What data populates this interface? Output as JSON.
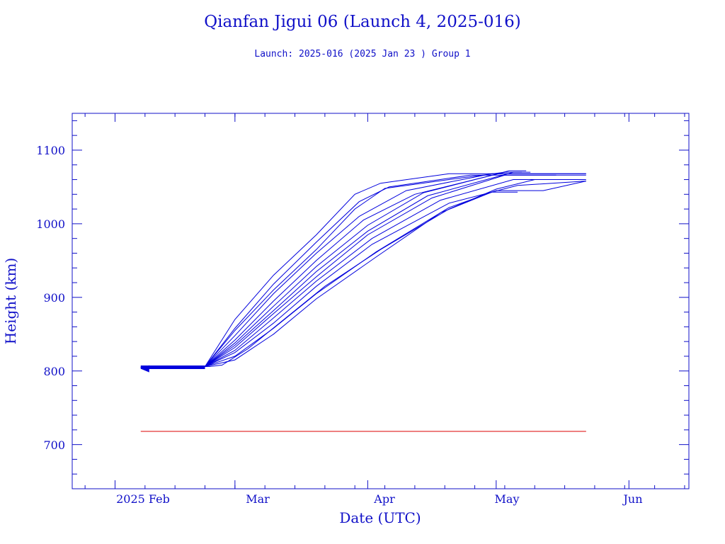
{
  "chart_data": {
    "type": "line",
    "title": "Qianfan Jigui 06 (Launch 4, 2025-016)",
    "subtitle": "Launch: 2025-016  (2025 Jan 23 )  Group 1",
    "xlabel": "Date (UTC)",
    "ylabel": "Height (km)",
    "x_tick_labels": [
      "2025 Feb",
      "Mar",
      "Apr",
      "May",
      "Jun"
    ],
    "x_ticks": [
      "2025-02-01",
      "2025-03-01",
      "2025-04-01",
      "2025-05-01",
      "2025-06-01"
    ],
    "y_ticks": [
      700,
      800,
      900,
      1000,
      1100
    ],
    "xlim": [
      "2025-01-22",
      "2025-06-15"
    ],
    "ylim": [
      640,
      1150
    ],
    "grid": false,
    "colors": {
      "series": "#0000dd",
      "reference": "#dd0000",
      "axes": "#1010c8"
    },
    "reference_line": {
      "y": 718,
      "x_start": "2025-02-07",
      "x_end": "2025-05-22"
    },
    "start_marker": {
      "x": "2025-02-07",
      "y": 803
    },
    "series": [
      {
        "values": [
          [
            "2025-02-07",
            805
          ],
          [
            "2025-02-22",
            806
          ],
          [
            "2025-03-01",
            870
          ],
          [
            "2025-03-10",
            930
          ],
          [
            "2025-03-20",
            985
          ],
          [
            "2025-03-29",
            1040
          ],
          [
            "2025-04-04",
            1055
          ],
          [
            "2025-04-20",
            1068
          ],
          [
            "2025-05-22",
            1068
          ]
        ]
      },
      {
        "values": [
          [
            "2025-02-07",
            805
          ],
          [
            "2025-02-22",
            806
          ],
          [
            "2025-03-01",
            858
          ],
          [
            "2025-03-10",
            918
          ],
          [
            "2025-03-20",
            975
          ],
          [
            "2025-03-30",
            1030
          ],
          [
            "2025-04-06",
            1050
          ],
          [
            "2025-04-25",
            1066
          ],
          [
            "2025-05-22",
            1066
          ]
        ]
      },
      {
        "values": [
          [
            "2025-02-07",
            805
          ],
          [
            "2025-02-22",
            806
          ],
          [
            "2025-03-01",
            848
          ],
          [
            "2025-03-10",
            905
          ],
          [
            "2025-03-20",
            960
          ],
          [
            "2025-03-30",
            1010
          ],
          [
            "2025-04-10",
            1045
          ],
          [
            "2025-04-30",
            1068
          ],
          [
            "2025-05-22",
            1068
          ]
        ]
      },
      {
        "values": [
          [
            "2025-02-07",
            805
          ],
          [
            "2025-02-22",
            806
          ],
          [
            "2025-03-01",
            842
          ],
          [
            "2025-03-10",
            895
          ],
          [
            "2025-03-20",
            950
          ],
          [
            "2025-03-31",
            1005
          ],
          [
            "2025-04-12",
            1040
          ],
          [
            "2025-05-03",
            1070
          ],
          [
            "2025-05-07",
            1070
          ]
        ]
      },
      {
        "values": [
          [
            "2025-02-07",
            805
          ],
          [
            "2025-02-22",
            806
          ],
          [
            "2025-03-01",
            838
          ],
          [
            "2025-03-10",
            888
          ],
          [
            "2025-03-20",
            942
          ],
          [
            "2025-04-01",
            998
          ],
          [
            "2025-04-14",
            1042
          ],
          [
            "2025-05-04",
            1072
          ],
          [
            "2025-05-08",
            1072
          ]
        ]
      },
      {
        "values": [
          [
            "2025-02-07",
            805
          ],
          [
            "2025-02-22",
            806
          ],
          [
            "2025-03-01",
            835
          ],
          [
            "2025-03-10",
            882
          ],
          [
            "2025-03-20",
            935
          ],
          [
            "2025-04-01",
            990
          ],
          [
            "2025-04-15",
            1038
          ],
          [
            "2025-05-05",
            1070
          ],
          [
            "2025-05-09",
            1070
          ]
        ]
      },
      {
        "values": [
          [
            "2025-02-07",
            805
          ],
          [
            "2025-02-22",
            806
          ],
          [
            "2025-03-01",
            832
          ],
          [
            "2025-03-10",
            878
          ],
          [
            "2025-03-20",
            928
          ],
          [
            "2025-04-01",
            985
          ],
          [
            "2025-04-16",
            1035
          ],
          [
            "2025-05-03",
            1066
          ],
          [
            "2025-05-15",
            1066
          ]
        ]
      },
      {
        "values": [
          [
            "2025-02-07",
            805
          ],
          [
            "2025-02-22",
            806
          ],
          [
            "2025-03-01",
            828
          ],
          [
            "2025-03-10",
            872
          ],
          [
            "2025-03-20",
            922
          ],
          [
            "2025-04-02",
            980
          ],
          [
            "2025-04-18",
            1032
          ],
          [
            "2025-05-05",
            1060
          ],
          [
            "2025-05-22",
            1060
          ]
        ]
      },
      {
        "values": [
          [
            "2025-02-07",
            805
          ],
          [
            "2025-02-22",
            806
          ],
          [
            "2025-03-01",
            825
          ],
          [
            "2025-03-10",
            865
          ],
          [
            "2025-03-20",
            915
          ],
          [
            "2025-04-02",
            972
          ],
          [
            "2025-04-20",
            1028
          ],
          [
            "2025-05-06",
            1052
          ],
          [
            "2025-05-22",
            1058
          ]
        ]
      },
      {
        "values": [
          [
            "2025-02-07",
            805
          ],
          [
            "2025-02-22",
            806
          ],
          [
            "2025-03-01",
            820
          ],
          [
            "2025-03-10",
            858
          ],
          [
            "2025-03-20",
            905
          ],
          [
            "2025-04-03",
            962
          ],
          [
            "2025-04-20",
            1022
          ],
          [
            "2025-05-01",
            1045
          ],
          [
            "2025-05-12",
            1045
          ],
          [
            "2025-05-22",
            1058
          ]
        ]
      },
      {
        "values": [
          [
            "2025-02-07",
            805
          ],
          [
            "2025-02-22",
            806
          ],
          [
            "2025-03-01",
            815
          ],
          [
            "2025-03-10",
            850
          ],
          [
            "2025-03-20",
            898
          ],
          [
            "2025-04-03",
            955
          ],
          [
            "2025-04-18",
            1015
          ],
          [
            "2025-04-30",
            1043
          ],
          [
            "2025-05-06",
            1043
          ]
        ]
      },
      {
        "values": [
          [
            "2025-02-07",
            805
          ],
          [
            "2025-02-23",
            806
          ],
          [
            "2025-02-26",
            808
          ],
          [
            "2025-03-04",
            830
          ],
          [
            "2025-03-12",
            868
          ],
          [
            "2025-03-22",
            915
          ],
          [
            "2025-04-04",
            965
          ],
          [
            "2025-04-20",
            1020
          ],
          [
            "2025-05-01",
            1047
          ],
          [
            "2025-05-10",
            1060
          ]
        ]
      },
      {
        "values": [
          [
            "2025-02-07",
            805
          ],
          [
            "2025-02-22",
            806
          ],
          [
            "2025-03-01",
            855
          ],
          [
            "2025-03-10",
            910
          ],
          [
            "2025-03-20",
            965
          ],
          [
            "2025-03-29",
            1020
          ],
          [
            "2025-04-05",
            1048
          ],
          [
            "2025-04-20",
            1060
          ],
          [
            "2025-05-03",
            1070
          ]
        ]
      }
    ]
  }
}
